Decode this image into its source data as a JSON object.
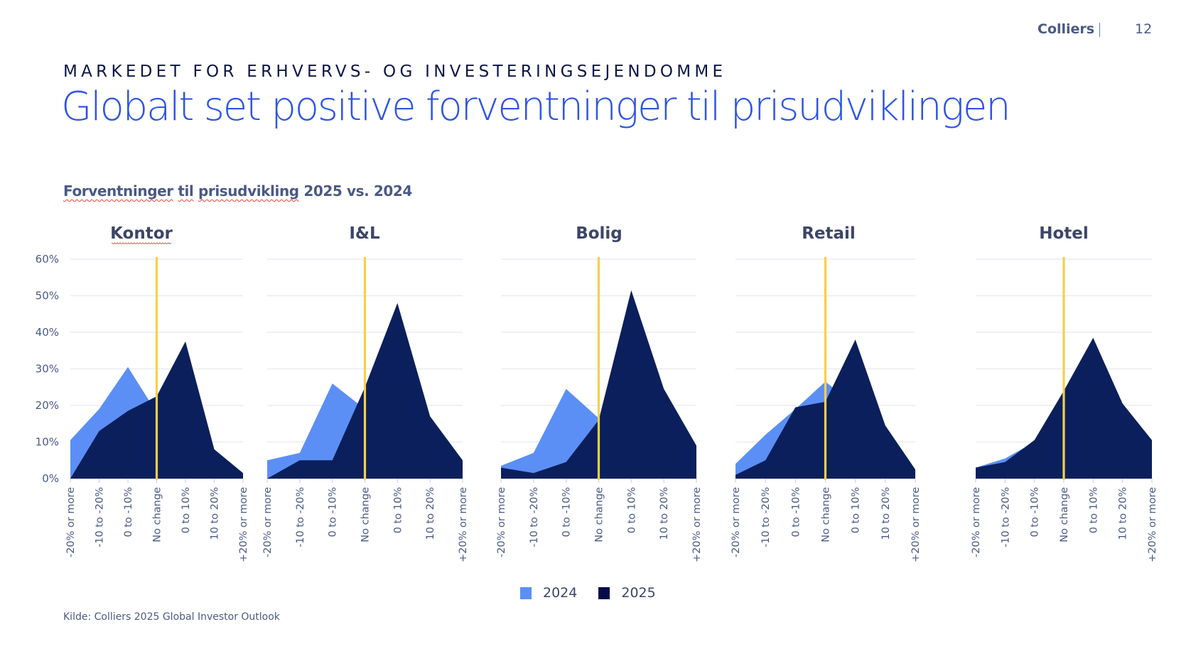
{
  "header": {
    "brand": "Colliers",
    "page_number": "12",
    "eyebrow": "MARKEDET FOR ERHVERVS- OG INVESTERINGSEJENDOMME",
    "title": "Globalt set positive forventninger til prisudviklingen"
  },
  "subtitle_parts": [
    "Forventninger",
    "til",
    "prisudvikling",
    "2025 vs. 2024"
  ],
  "source": "Kilde: Colliers 2025 Global Investor Outlook",
  "legend": [
    {
      "label": "2024",
      "color": "#5b8ff5"
    },
    {
      "label": "2025",
      "color": "#0b1f5c"
    }
  ],
  "colors": {
    "series_2024": "#5b8ff5",
    "series_2025": "#0b1f5c",
    "legend_2025": "#060a4a",
    "reference_line": "#f7d046",
    "grid": "#e8e8f0",
    "axis_text": "#4a5a86"
  },
  "chart_data": [
    {
      "type": "area",
      "title": "Kontor",
      "categories": [
        "-20% or more",
        "-10 to -20%",
        "0 to -10%",
        "No change",
        "0 to 10%",
        "10 to 20%",
        "+20% or more"
      ],
      "series": [
        {
          "name": "2024",
          "values": [
            10.5,
            19,
            30.5,
            18,
            14,
            5,
            1.5
          ]
        },
        {
          "name": "2025",
          "values": [
            0,
            13,
            18.5,
            22.5,
            37.5,
            8,
            1.5
          ]
        }
      ],
      "yticks": [
        "0%",
        "10%",
        "20%",
        "30%",
        "40%",
        "50%",
        "60%"
      ],
      "ylim": [
        0,
        60
      ],
      "reference_category": "No change",
      "grid": true
    },
    {
      "type": "area",
      "title": "I&L",
      "categories": [
        "-20% or more",
        "-10 to -20%",
        "0 to -10%",
        "No change",
        "0 to 10%",
        "10 to 20%",
        "+20% or more"
      ],
      "series": [
        {
          "name": "2024",
          "values": [
            5,
            7,
            26,
            19,
            20,
            12,
            4
          ]
        },
        {
          "name": "2025",
          "values": [
            0,
            5,
            5,
            25,
            48,
            17,
            5
          ]
        }
      ],
      "yticks": [],
      "ylim": [
        0,
        60
      ],
      "reference_category": "No change",
      "grid": true
    },
    {
      "type": "area",
      "title": "Bolig",
      "categories": [
        "-20% or more",
        "-10 to -20%",
        "0 to -10%",
        "No change",
        "0 to 10%",
        "10 to 20%",
        "+20% or more"
      ],
      "series": [
        {
          "name": "2024",
          "values": [
            3.5,
            7,
            24.5,
            16.5,
            20,
            10,
            4
          ]
        },
        {
          "name": "2025",
          "values": [
            3,
            1.5,
            4.5,
            16,
            51.5,
            24.5,
            9
          ]
        }
      ],
      "yticks": [],
      "ylim": [
        0,
        60
      ],
      "reference_category": "No change",
      "grid": true
    },
    {
      "type": "area",
      "title": "Retail",
      "categories": [
        "-20% or more",
        "-10 to -20%",
        "0 to -10%",
        "No change",
        "0 to 10%",
        "10 to 20%",
        "+20% or more"
      ],
      "series": [
        {
          "name": "2024",
          "values": [
            4,
            12,
            19,
            26.5,
            20,
            10,
            2
          ]
        },
        {
          "name": "2025",
          "values": [
            1,
            5,
            19.5,
            21,
            38,
            14.5,
            2.5
          ]
        }
      ],
      "yticks": [],
      "ylim": [
        0,
        60
      ],
      "reference_category": "No change",
      "grid": true
    },
    {
      "type": "area",
      "title": "Hotel",
      "categories": [
        "-20% or more",
        "-10 to -20%",
        "0 to -10%",
        "No change",
        "0 to 10%",
        "10 to 20%",
        "+20% or more"
      ],
      "series": [
        {
          "name": "2024",
          "values": [
            3,
            5.5,
            10,
            20,
            25,
            15,
            8
          ]
        },
        {
          "name": "2025",
          "values": [
            3,
            4.5,
            10.5,
            24,
            38.5,
            20.5,
            10.5
          ]
        }
      ],
      "yticks": [],
      "ylim": [
        0,
        60
      ],
      "reference_category": "No change",
      "grid": true
    }
  ]
}
